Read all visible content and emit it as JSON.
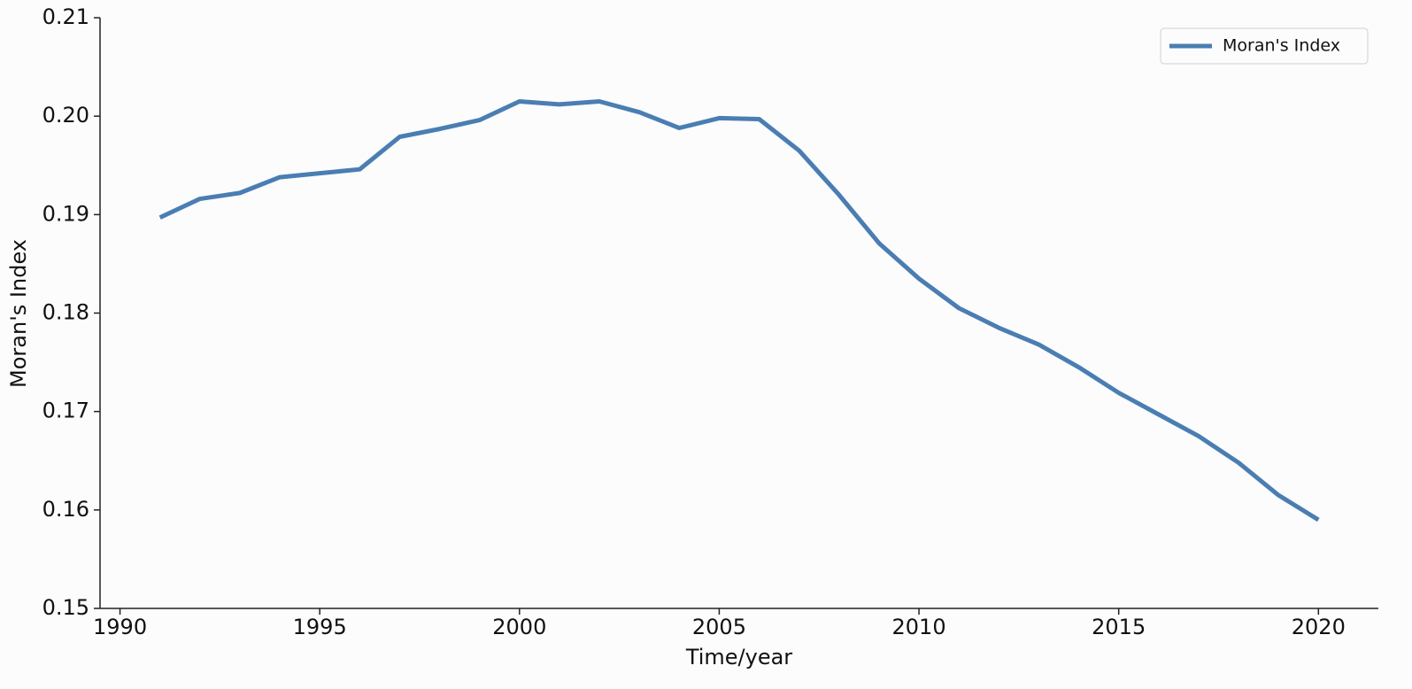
{
  "chart_data": {
    "type": "line",
    "x_label": "Time/year",
    "y_label": "Moran's Index",
    "x": [
      1991,
      1992,
      1993,
      1994,
      1995,
      1996,
      1997,
      1998,
      1999,
      2000,
      2001,
      2002,
      2003,
      2004,
      2005,
      2006,
      2007,
      2008,
      2009,
      2010,
      2011,
      2012,
      2013,
      2014,
      2015,
      2016,
      2017,
      2018,
      2019,
      2020
    ],
    "series": [
      {
        "name": "Moran's Index",
        "color": "#4a7eb3",
        "values": [
          0.1897,
          0.1916,
          0.1922,
          0.1938,
          0.1942,
          0.1946,
          0.1979,
          0.1987,
          0.1996,
          0.2015,
          0.2012,
          0.2015,
          0.2004,
          0.1988,
          0.1998,
          0.1997,
          0.1965,
          0.192,
          0.1871,
          0.1835,
          0.1805,
          0.1785,
          0.1768,
          0.1745,
          0.1719,
          0.1697,
          0.1675,
          0.1648,
          0.1615,
          0.159
        ]
      }
    ],
    "xlim": [
      1989.5,
      2021.5
    ],
    "xticks": [
      1990,
      1995,
      2000,
      2005,
      2010,
      2015,
      2020
    ],
    "ylim": [
      0.15,
      0.21
    ],
    "yticks": [
      0.15,
      0.16,
      0.17,
      0.18,
      0.19,
      {
        "value": 0.2,
        "label": "0.20"
      },
      0.21
    ],
    "legend": "upper right",
    "grid": false
  }
}
